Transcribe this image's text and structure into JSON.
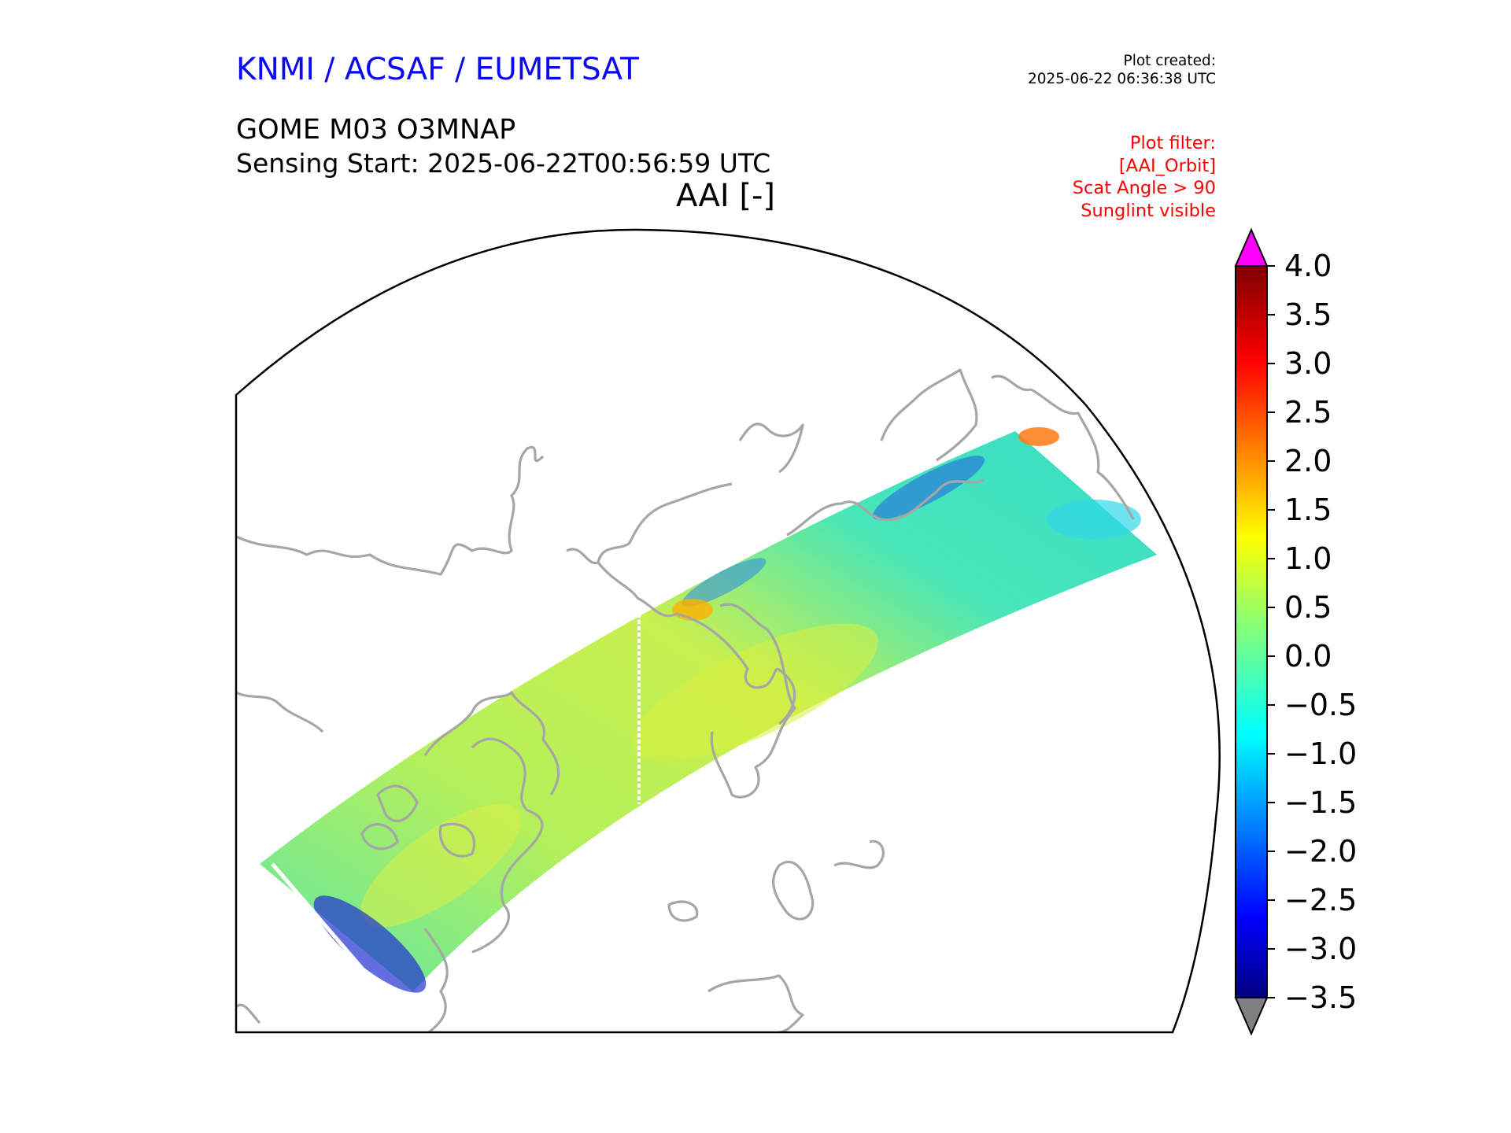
{
  "header": {
    "organisations": "KNMI / ACSAF / EUMETSAT",
    "product": "GOME M03 O3MNAP",
    "sensing_start": "Sensing Start: 2025-06-22T00:56:59 UTC",
    "quantity": "AAI [-]",
    "plot_created_label": "Plot created:",
    "plot_created_time": "2025-06-22 06:36:38 UTC"
  },
  "plot_filter": {
    "title": "Plot filter:",
    "lines": [
      "[AAI_Orbit]",
      "Scat Angle > 90",
      "Sunglint visible"
    ]
  },
  "colorbar": {
    "ticks": [
      "4.0",
      "3.5",
      "3.0",
      "2.5",
      "2.0",
      "1.5",
      "1.0",
      "0.5",
      "0.0",
      "−0.5",
      "−1.0",
      "−1.5",
      "−2.0",
      "−2.5",
      "−3.0",
      "−3.5"
    ],
    "min": -3.5,
    "max": 4.0,
    "colormap": "jet",
    "over_color": "#ff00ff",
    "under_color": "#808080"
  },
  "map": {
    "projection": "north-polar-stereographic",
    "coastline_color": "#a6a6a6",
    "swath_dominant_color": "#40e8b0"
  }
}
